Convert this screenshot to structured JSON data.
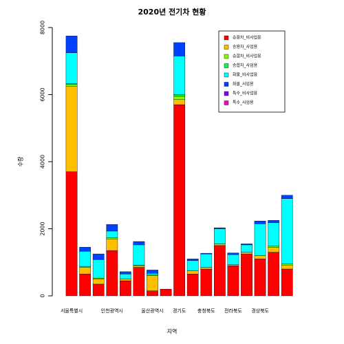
{
  "chart_data": {
    "type": "stacked_bar",
    "title": "2020년 전기차 현황",
    "x_label": "지역",
    "y_label": "수량",
    "categories": [
      "서울특별시",
      null,
      null,
      "인천광역시",
      null,
      null,
      "울산광역시",
      null,
      "경기도",
      null,
      "충청북도",
      null,
      "전라북도",
      null,
      "경상북도",
      null,
      null
    ],
    "ylim": [
      0,
      8000
    ],
    "yticks": [
      0,
      2000,
      4000,
      6000,
      8000
    ],
    "legend": "top-right",
    "series": [
      {
        "name": "승용차_비사업용",
        "color": "#ff0000",
        "values": [
          3700,
          650,
          350,
          1350,
          450,
          850,
          150,
          200,
          5700,
          650,
          800,
          1500,
          900,
          1250,
          1100,
          1300,
          800
        ]
      },
      {
        "name": "승용차_사업용",
        "color": "#ffbf00",
        "values": [
          2550,
          200,
          150,
          350,
          50,
          50,
          450,
          0,
          150,
          100,
          50,
          50,
          30,
          50,
          100,
          150,
          120
        ]
      },
      {
        "name": "승합차_비사업용",
        "color": "#80ff00",
        "values": [
          50,
          30,
          30,
          30,
          0,
          20,
          20,
          0,
          100,
          0,
          0,
          0,
          0,
          0,
          0,
          30,
          30
        ]
      },
      {
        "name": "승합차_사업용",
        "color": "#00ff40",
        "values": [
          30,
          0,
          0,
          0,
          0,
          0,
          0,
          0,
          50,
          0,
          0,
          0,
          0,
          0,
          0,
          0,
          0
        ]
      },
      {
        "name": "화물_비사업용",
        "color": "#00ffff",
        "values": [
          920,
          450,
          550,
          200,
          150,
          600,
          50,
          0,
          1150,
          300,
          400,
          450,
          300,
          220,
          950,
          700,
          1950
        ]
      },
      {
        "name": "화물_사업용",
        "color": "#0040ff",
        "values": [
          500,
          120,
          170,
          200,
          70,
          100,
          100,
          0,
          400,
          50,
          20,
          30,
          50,
          30,
          80,
          70,
          100
        ]
      },
      {
        "name": "특수_비사업용",
        "color": "#8000ff",
        "values": [
          0,
          0,
          0,
          0,
          0,
          0,
          0,
          0,
          0,
          0,
          0,
          0,
          0,
          0,
          0,
          0,
          0
        ]
      },
      {
        "name": "특수_사업용",
        "color": "#ff00bf",
        "values": [
          0,
          0,
          0,
          0,
          0,
          0,
          0,
          0,
          0,
          0,
          0,
          0,
          0,
          0,
          0,
          0,
          0
        ]
      }
    ]
  }
}
